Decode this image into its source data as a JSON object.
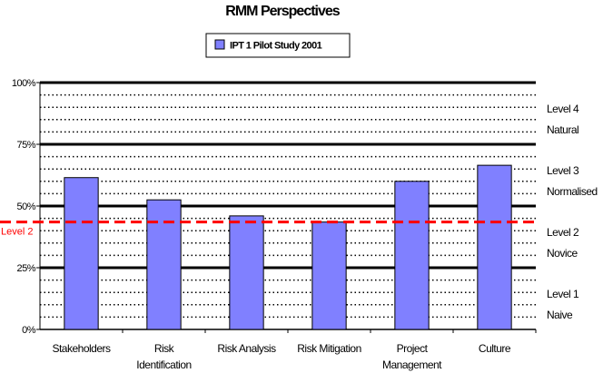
{
  "chart_data": {
    "type": "bar",
    "title": "RMM Perspectives",
    "categories": [
      "Stakeholders",
      "Risk Identification",
      "Risk Analysis",
      "Risk Mitigation",
      "Project Management",
      "Culture"
    ],
    "category_lines": [
      [
        "Stakeholders"
      ],
      [
        "Risk",
        "Identification"
      ],
      [
        "Risk Analysis"
      ],
      [
        "Risk Mitigation"
      ],
      [
        "Project",
        "Management"
      ],
      [
        "Culture"
      ]
    ],
    "series": [
      {
        "name": "IPT 1 Pilot Study 2001",
        "values": [
          61.5,
          52.5,
          46,
          43.5,
          60,
          66.5
        ],
        "color": "#8080ff"
      }
    ],
    "ylim": [
      0,
      100
    ],
    "y_ticks": [
      {
        "value": 0,
        "label": "0%"
      },
      {
        "value": 25,
        "label": "25%"
      },
      {
        "value": 50,
        "label": "50%"
      },
      {
        "value": 75,
        "label": "75%"
      },
      {
        "value": 100,
        "label": "100%"
      }
    ],
    "minor_grid_step": 5,
    "grid": true,
    "legend_position": "top-center",
    "reference_line": {
      "value": 43.5,
      "label": "Level 2",
      "color": "#ff0000",
      "style": "dashed"
    },
    "band_labels": [
      {
        "range": [
          75,
          100
        ],
        "lines": [
          "Level 4",
          "Natural"
        ]
      },
      {
        "range": [
          50,
          75
        ],
        "lines": [
          "Level 3",
          "Normalised"
        ]
      },
      {
        "range": [
          25,
          50
        ],
        "lines": [
          "Level 2",
          "Novice"
        ]
      },
      {
        "range": [
          0,
          25
        ],
        "lines": [
          "Level 1",
          "Naive"
        ]
      }
    ]
  }
}
